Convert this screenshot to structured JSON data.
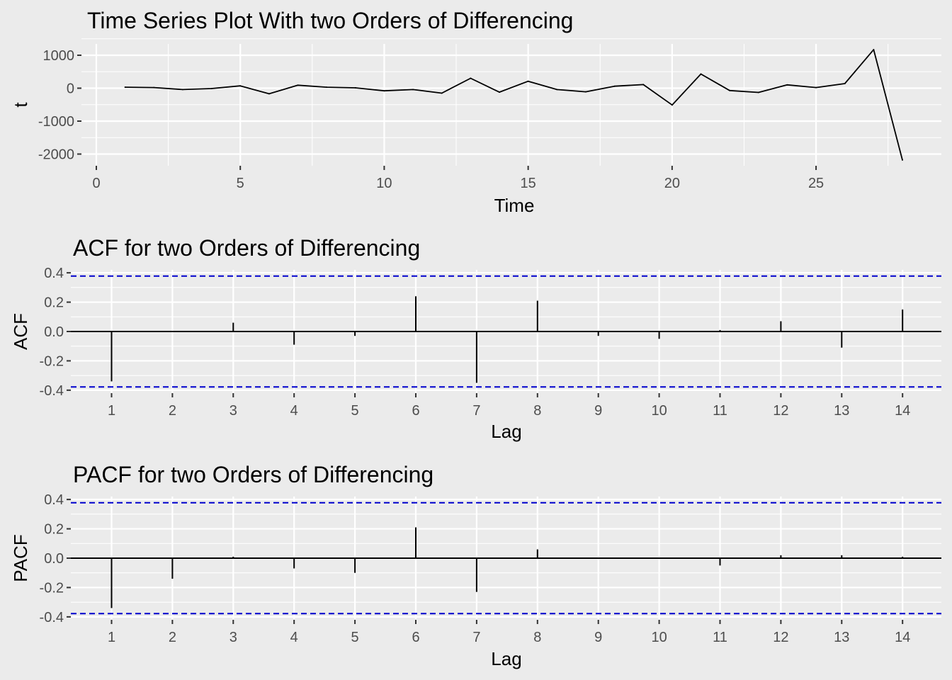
{
  "colors": {
    "background": "#EBEBEB",
    "grid": "#FFFFFF",
    "series": "#000000",
    "confidence_band": "#0000CD",
    "tick_text": "#4D4D4D"
  },
  "chart_data": [
    {
      "id": "ts",
      "type": "line",
      "title": "Time Series Plot With two Orders of Differencing",
      "xlabel": "Time",
      "ylabel": "t",
      "xlim": [
        0,
        28
      ],
      "ylim": [
        -2200,
        1200
      ],
      "x_ticks": [
        0,
        5,
        10,
        15,
        20,
        25
      ],
      "x_tick_labels": [
        "0",
        "5",
        "10",
        "15",
        "20",
        "25"
      ],
      "y_ticks": [
        1000,
        0,
        -1000,
        -2000
      ],
      "y_tick_labels": [
        "1000",
        "0",
        "-1000",
        "-2000"
      ],
      "grid": true,
      "legend": "none",
      "series": [
        {
          "x": [
            1,
            2,
            3,
            4,
            5,
            6,
            7,
            8,
            9,
            10,
            11,
            12,
            13,
            14,
            15,
            16,
            17,
            18,
            19,
            20,
            21,
            22,
            23,
            24,
            25,
            26,
            27,
            28
          ],
          "values": [
            30,
            20,
            -40,
            -10,
            70,
            -170,
            90,
            30,
            10,
            -80,
            -40,
            -150,
            300,
            -120,
            210,
            -40,
            -110,
            60,
            110,
            -510,
            430,
            -70,
            -130,
            100,
            20,
            140,
            1170,
            -2180
          ]
        }
      ]
    },
    {
      "id": "acf",
      "type": "bar",
      "title": "ACF for two Orders of Differencing",
      "xlabel": "Lag",
      "ylabel": "ACF",
      "ylim": [
        -0.42,
        0.42
      ],
      "categories": [
        "1",
        "2",
        "3",
        "4",
        "5",
        "6",
        "7",
        "8",
        "9",
        "10",
        "11",
        "12",
        "13",
        "14"
      ],
      "y_ticks": [
        0.4,
        0.2,
        0.0,
        -0.2,
        -0.4
      ],
      "y_tick_labels": [
        "0.4",
        "0.2",
        "0.0",
        "-0.2",
        "-0.4"
      ],
      "confidence_bounds": [
        0.378,
        -0.378
      ],
      "grid": true,
      "legend": "none",
      "values": [
        -0.34,
        0.0,
        0.06,
        -0.09,
        -0.03,
        0.24,
        -0.35,
        0.21,
        -0.03,
        -0.05,
        0.01,
        0.07,
        -0.11,
        0.15
      ]
    },
    {
      "id": "pacf",
      "type": "bar",
      "title": "PACF for two Orders of Differencing",
      "xlabel": "Lag",
      "ylabel": "PACF",
      "ylim": [
        -0.42,
        0.42
      ],
      "categories": [
        "1",
        "2",
        "3",
        "4",
        "5",
        "6",
        "7",
        "8",
        "9",
        "10",
        "11",
        "12",
        "13",
        "14"
      ],
      "y_ticks": [
        0.4,
        0.2,
        0.0,
        -0.2,
        -0.4
      ],
      "y_tick_labels": [
        "0.4",
        "0.2",
        "0.0",
        "-0.2",
        "-0.4"
      ],
      "confidence_bounds": [
        0.378,
        -0.378
      ],
      "grid": true,
      "legend": "none",
      "values": [
        -0.34,
        -0.14,
        0.01,
        -0.07,
        -0.1,
        0.21,
        -0.23,
        0.06,
        0.0,
        0.0,
        -0.05,
        0.02,
        0.02,
        0.01
      ]
    }
  ]
}
